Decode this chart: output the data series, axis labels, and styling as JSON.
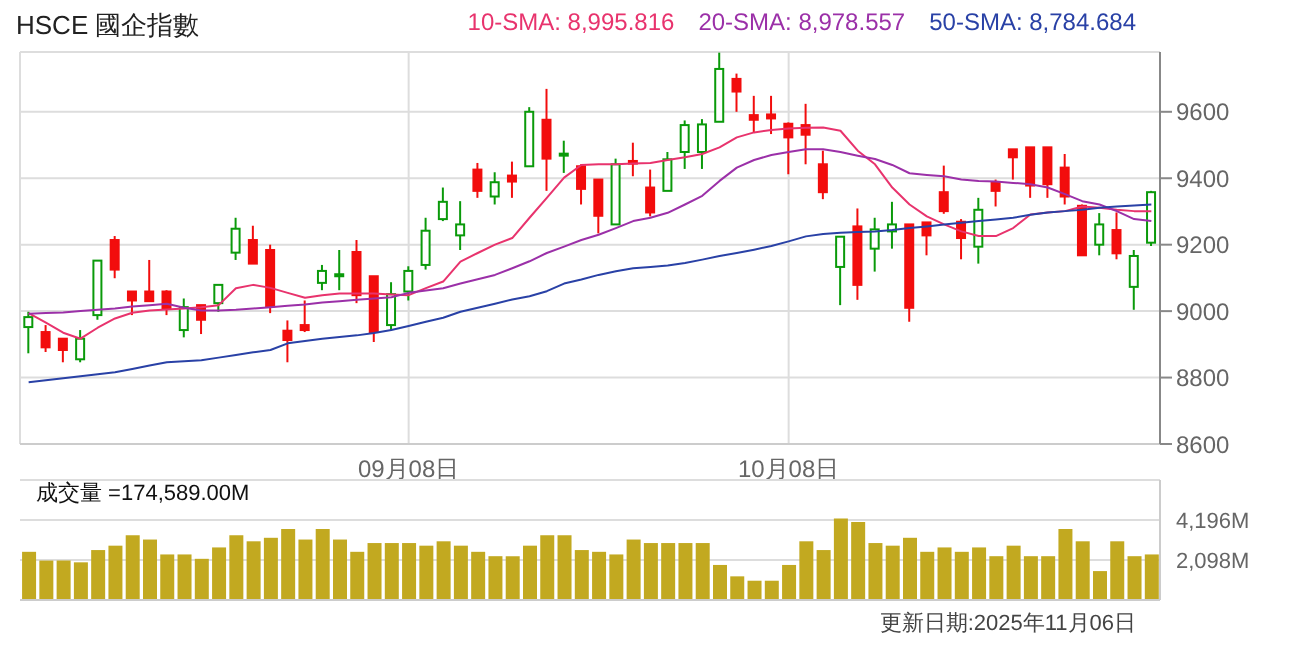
{
  "chart_data": [
    {
      "type": "candlestick",
      "title": "HSCE 國企指數",
      "categories": [
        null,
        null,
        null,
        null,
        null,
        null,
        null,
        null,
        null,
        null,
        null,
        null,
        null,
        null,
        null,
        null,
        null,
        null,
        null,
        null,
        null,
        null,
        "09月08日",
        null,
        null,
        null,
        null,
        null,
        null,
        null,
        null,
        null,
        null,
        null,
        null,
        null,
        null,
        null,
        null,
        null,
        null,
        null,
        null,
        null,
        "10月08日",
        null,
        null,
        null,
        null,
        null,
        null,
        null,
        null,
        null,
        null,
        null,
        null,
        null,
        null,
        null,
        null,
        null,
        null,
        null,
        null,
        null
      ],
      "ohlc": [
        [
          8952,
          8998,
          8873,
          8982
        ],
        [
          8937,
          8958,
          8877,
          8891
        ],
        [
          8917,
          8917,
          8846,
          8883
        ],
        [
          8855,
          8943,
          8846,
          8917
        ],
        [
          8988,
          9152,
          8974,
          9152
        ],
        [
          9214,
          9226,
          9099,
          9125
        ],
        [
          9059,
          9059,
          8988,
          9032
        ],
        [
          9059,
          9154,
          9030,
          9030
        ],
        [
          9059,
          9063,
          8988,
          9008
        ],
        [
          8943,
          9038,
          8921,
          9012
        ],
        [
          9018,
          9018,
          8931,
          8974
        ],
        [
          9024,
          9079,
          8998,
          9079
        ],
        [
          9176,
          9281,
          9154,
          9248
        ],
        [
          9214,
          9257,
          9143,
          9143
        ],
        [
          9184,
          9200,
          8994,
          9014
        ],
        [
          8941,
          8972,
          8846,
          8913
        ],
        [
          8958,
          9032,
          8937,
          8943
        ],
        [
          9085,
          9139,
          9063,
          9121
        ],
        [
          9110,
          9184,
          9063,
          9111
        ],
        [
          9178,
          9214,
          9024,
          9048
        ],
        [
          9105,
          9105,
          8907,
          8937
        ],
        [
          8958,
          9087,
          8941,
          9051
        ],
        [
          9059,
          9135,
          9032,
          9121
        ],
        [
          9139,
          9281,
          9125,
          9242
        ],
        [
          9277,
          9372,
          9271,
          9329
        ],
        [
          9228,
          9331,
          9184,
          9261
        ],
        [
          9426,
          9446,
          9341,
          9362
        ],
        [
          9345,
          9418,
          9321,
          9388
        ],
        [
          9408,
          9450,
          9341,
          9390
        ],
        [
          9436,
          9614,
          9436,
          9600
        ],
        [
          9576,
          9669,
          9362,
          9459
        ],
        [
          9471,
          9513,
          9416,
          9474
        ],
        [
          9436,
          9442,
          9321,
          9368
        ],
        [
          9396,
          9396,
          9234,
          9287
        ],
        [
          9261,
          9459,
          9261,
          9442
        ],
        [
          9452,
          9507,
          9406,
          9444
        ],
        [
          9372,
          9426,
          9285,
          9297
        ],
        [
          9362,
          9479,
          9362,
          9457
        ],
        [
          9479,
          9574,
          9428,
          9560
        ],
        [
          9479,
          9578,
          9428,
          9562
        ],
        [
          9570,
          9778,
          9570,
          9729
        ],
        [
          9699,
          9715,
          9600,
          9661
        ],
        [
          9590,
          9648,
          9539,
          9576
        ],
        [
          9592,
          9648,
          9533,
          9580
        ],
        [
          9564,
          9568,
          9412,
          9523
        ],
        [
          9560,
          9624,
          9442,
          9531
        ],
        [
          9442,
          9483,
          9337,
          9358
        ],
        [
          9133,
          9224,
          9018,
          9224
        ],
        [
          9255,
          9309,
          9034,
          9079
        ],
        [
          9188,
          9281,
          9119,
          9246
        ],
        [
          9240,
          9329,
          9188,
          9261
        ],
        [
          9261,
          9261,
          8968,
          9010
        ],
        [
          9267,
          9267,
          9168,
          9228
        ],
        [
          9358,
          9438,
          9293,
          9301
        ],
        [
          9269,
          9277,
          9156,
          9220
        ],
        [
          9194,
          9341,
          9143,
          9305
        ],
        [
          9386,
          9396,
          9315,
          9362
        ],
        [
          9487,
          9487,
          9396,
          9463
        ],
        [
          9493,
          9493,
          9341,
          9378
        ],
        [
          9493,
          9493,
          9341,
          9382
        ],
        [
          9432,
          9473,
          9321,
          9345
        ],
        [
          9317,
          9321,
          9168,
          9168
        ],
        [
          9200,
          9295,
          9168,
          9261
        ],
        [
          9244,
          9297,
          9156,
          9174
        ],
        [
          9073,
          9184,
          9004,
          9166
        ],
        [
          9206,
          9362,
          9196,
          9358
        ]
      ],
      "series": [
        {
          "name": "10-SMA: 8,995.816",
          "type": "line",
          "color": "#e8336d",
          "values": [
            8994,
            8965,
            8935,
            8917,
            8950,
            8978,
            8995,
            9002,
            9005,
            9008,
            9012,
            9018,
            9069,
            9079,
            9070,
            9055,
            9040,
            9048,
            9053,
            9053,
            9053,
            9050,
            9048,
            9069,
            9089,
            9149,
            9175,
            9200,
            9220,
            9281,
            9341,
            9402,
            9440,
            9442,
            9442,
            9444,
            9446,
            9455,
            9463,
            9473,
            9493,
            9523,
            9538,
            9545,
            9550,
            9552,
            9553,
            9543,
            9483,
            9442,
            9372,
            9321,
            9285,
            9261,
            9240,
            9226,
            9226,
            9250,
            9291,
            9297,
            9301,
            9315,
            9311,
            9305,
            9301,
            9301
          ]
        },
        {
          "name": "20-SMA: 8,978.557",
          "type": "line",
          "color": "#9b30a8",
          "values": [
            8992,
            8994,
            8996,
            9000,
            9004,
            9008,
            9014,
            9018,
            9022,
            9010,
            9002,
            9002,
            9004,
            9008,
            9012,
            9016,
            9020,
            9026,
            9030,
            9034,
            9038,
            9042,
            9055,
            9062,
            9069,
            9083,
            9096,
            9109,
            9129,
            9150,
            9175,
            9194,
            9214,
            9230,
            9250,
            9271,
            9281,
            9296,
            9321,
            9347,
            9392,
            9432,
            9455,
            9470,
            9479,
            9487,
            9487,
            9479,
            9468,
            9458,
            9440,
            9415,
            9410,
            9406,
            9396,
            9392,
            9390,
            9386,
            9382,
            9372,
            9352,
            9331,
            9321,
            9301,
            9277,
            9271
          ]
        },
        {
          "name": "50-SMA: 8,784.684",
          "type": "line",
          "color": "#2941a6",
          "values": [
            8786,
            8792,
            8798,
            8804,
            8810,
            8816,
            8826,
            8836,
            8846,
            8849,
            8852,
            8860,
            8868,
            8876,
            8883,
            8903,
            8910,
            8917,
            8922,
            8927,
            8934,
            8943,
            8955,
            8968,
            8980,
            8998,
            9010,
            9022,
            9035,
            9045,
            9060,
            9083,
            9095,
            9109,
            9120,
            9129,
            9133,
            9137,
            9145,
            9155,
            9166,
            9175,
            9185,
            9196,
            9210,
            9225,
            9232,
            9236,
            9238,
            9240,
            9244,
            9250,
            9255,
            9261,
            9266,
            9271,
            9276,
            9281,
            9290,
            9297,
            9301,
            9305,
            9311,
            9315,
            9318,
            9321
          ]
        }
      ],
      "ylim": [
        8600,
        9780
      ],
      "yticks": [
        8600,
        8800,
        9000,
        9200,
        9400,
        9600
      ],
      "grid": true,
      "legend": "top right"
    },
    {
      "type": "bar",
      "categories": [
        null,
        null,
        null,
        null,
        null,
        null,
        null,
        null,
        null,
        null,
        null,
        null,
        null,
        null,
        null,
        null,
        null,
        null,
        null,
        null,
        null,
        null,
        null,
        null,
        null,
        null,
        null,
        null,
        null,
        null,
        null,
        null,
        null,
        null,
        null,
        null,
        null,
        null,
        null,
        null,
        null,
        null,
        null,
        null,
        null,
        null,
        null,
        null,
        null,
        null,
        null,
        null,
        null,
        null,
        null,
        null,
        null,
        null,
        null,
        null,
        null,
        null,
        null,
        null,
        null,
        null
      ],
      "values": [
        2530,
        2070,
        2070,
        1978,
        2622,
        2852,
        3404,
        3174,
        2392,
        2392,
        2162,
        2760,
        3404,
        3082,
        3266,
        3726,
        3174,
        3726,
        3174,
        2530,
        2990,
        2990,
        2990,
        2852,
        3082,
        2852,
        2530,
        2300,
        2300,
        2852,
        3404,
        3404,
        2622,
        2530,
        2392,
        3174,
        2990,
        2990,
        2990,
        2990,
        1840,
        1242,
        1012,
        1012,
        1840,
        3082,
        2622,
        4278,
        4094,
        2990,
        2852,
        3266,
        2530,
        2760,
        2530,
        2760,
        2300,
        2852,
        2300,
        2300,
        3726,
        3082,
        1518,
        3082,
        2300,
        2392
      ],
      "color": "#c2a920",
      "ylim": [
        0,
        6300
      ],
      "yticks": [
        {
          "value": 2098,
          "label": "2,098M"
        },
        {
          "value": 4196,
          "label": "4,196M"
        }
      ],
      "grid": "y",
      "tick_labels": "y",
      "annotations": [
        "成交量 =174,589.00M",
        "更新日期:2025年11月06日"
      ]
    }
  ]
}
